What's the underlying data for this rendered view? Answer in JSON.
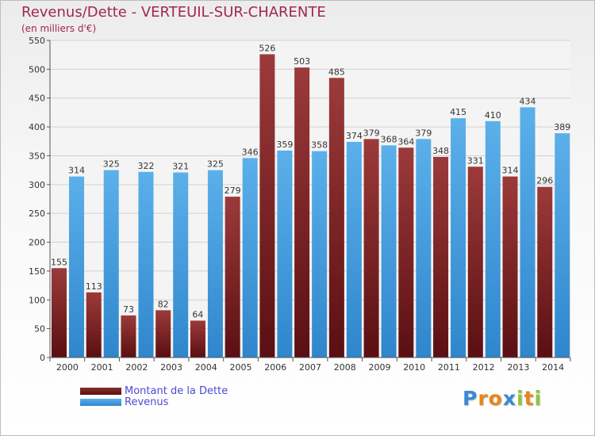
{
  "chart_data": {
    "type": "bar",
    "title": "Revenus/Dette - VERTEUIL-SUR-CHARENTE",
    "subtitle": "(en milliers d'€)",
    "categories": [
      "2000",
      "2001",
      "2002",
      "2003",
      "2004",
      "2005",
      "2006",
      "2007",
      "2008",
      "2009",
      "2010",
      "2011",
      "2012",
      "2013",
      "2014"
    ],
    "series": [
      {
        "name": "Montant de la Dette",
        "values": [
          155,
          113,
          73,
          82,
          64,
          279,
          526,
          503,
          485,
          379,
          364,
          348,
          331,
          314,
          296
        ],
        "color": "#8b2d2d"
      },
      {
        "name": "Revenus",
        "values": [
          314,
          325,
          322,
          321,
          325,
          346,
          359,
          358,
          374,
          368,
          379,
          415,
          410,
          434,
          389
        ],
        "color": "#4ea3e0"
      }
    ],
    "yticks": [
      0,
      50,
      100,
      150,
      200,
      250,
      300,
      350,
      400,
      450,
      500,
      550
    ],
    "ylim": [
      0,
      550
    ],
    "grid": true,
    "legend_position": "bottom-left"
  },
  "logo": {
    "letters": [
      "P",
      "r",
      "o",
      "x",
      "i",
      "t",
      "i"
    ],
    "colors": [
      "#3a8ad8",
      "#e8841e",
      "#e8841e",
      "#3a8ad8",
      "#8cc63f",
      "#e8841e",
      "#8cc63f"
    ]
  }
}
